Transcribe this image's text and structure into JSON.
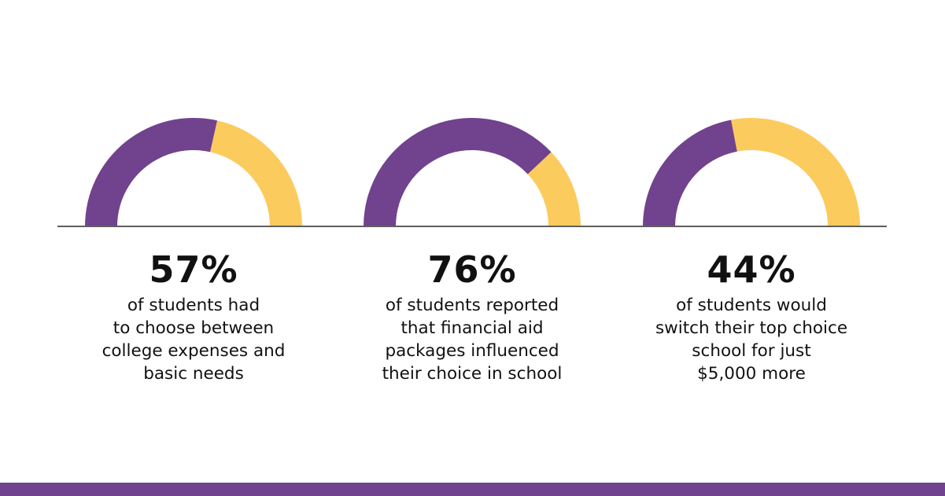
{
  "colors": {
    "purple": "#71428d",
    "yellow": "#fccb5e",
    "baseline": "#5e5e5e",
    "footer": "#71428d"
  },
  "chart_data": [
    {
      "type": "pie",
      "style": "half-donut",
      "value": 57,
      "label": "57%",
      "description": [
        "of students had",
        "to choose between",
        "college expenses and",
        "basic needs"
      ]
    },
    {
      "type": "pie",
      "style": "half-donut",
      "value": 76,
      "label": "76%",
      "description": [
        "of students reported",
        "that financial aid",
        "packages influenced",
        "their choice in school"
      ]
    },
    {
      "type": "pie",
      "style": "half-donut",
      "value": 44,
      "label": "44%",
      "description": [
        "of students would",
        "switch their top choice",
        "school for just",
        "$5,000 more"
      ]
    }
  ]
}
